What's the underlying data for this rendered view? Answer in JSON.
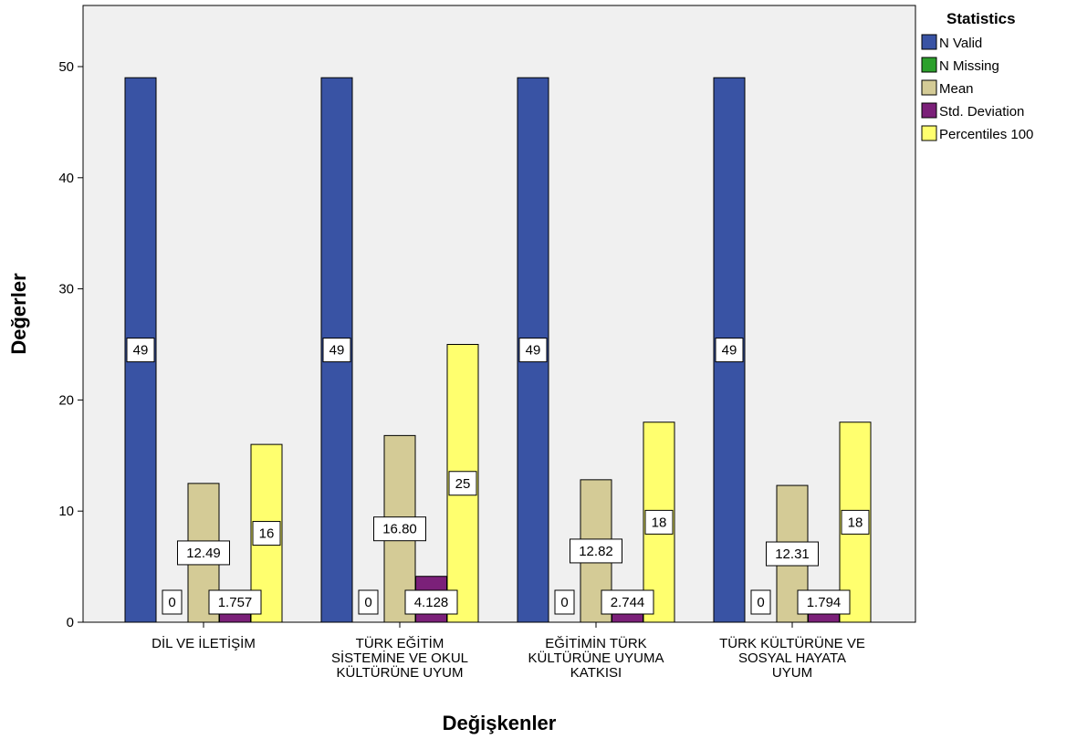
{
  "chart_data": {
    "type": "bar",
    "xlabel": "Değişkenler",
    "ylabel": "Değerler",
    "ylim": [
      0,
      55
    ],
    "yticks": [
      0,
      10,
      20,
      30,
      40,
      50
    ],
    "grid": false,
    "legend_title": "Statistics",
    "legend_position": "right",
    "categories": [
      [
        "DİL VE İLETİŞİM"
      ],
      [
        "TÜRK EĞİTİM",
        "SİSTEMİNE VE OKUL",
        "KÜLTÜRÜNE UYUM"
      ],
      [
        "EĞİTİMİN TÜRK",
        "KÜLTÜRÜNE UYUMA",
        "KATKISI"
      ],
      [
        "TÜRK KÜLTÜRÜNE VE",
        "SOSYAL HAYATA",
        "UYUM"
      ]
    ],
    "series": [
      {
        "name": "N Valid",
        "color": "#3953a4",
        "values": [
          49,
          49,
          49,
          49
        ],
        "labels": [
          "49",
          "49",
          "49",
          "49"
        ]
      },
      {
        "name": "N Missing",
        "color": "#2ca02c",
        "values": [
          0,
          0,
          0,
          0
        ],
        "labels": [
          "0",
          "0",
          "0",
          "0"
        ]
      },
      {
        "name": "Mean",
        "color": "#d4cb96",
        "values": [
          12.49,
          16.8,
          12.82,
          12.31
        ],
        "labels": [
          "12.49",
          "16.80",
          "12.82",
          "12.31"
        ]
      },
      {
        "name": "Std. Deviation",
        "color": "#7b2079",
        "values": [
          1.757,
          4.128,
          2.744,
          1.794
        ],
        "labels": [
          "1.757",
          "4.128",
          "2.744",
          "1.794"
        ]
      },
      {
        "name": "Percentiles 100",
        "color": "#ffff6e",
        "values": [
          16,
          25,
          18,
          18
        ],
        "labels": [
          "16",
          "25",
          "18",
          "18"
        ]
      }
    ]
  }
}
